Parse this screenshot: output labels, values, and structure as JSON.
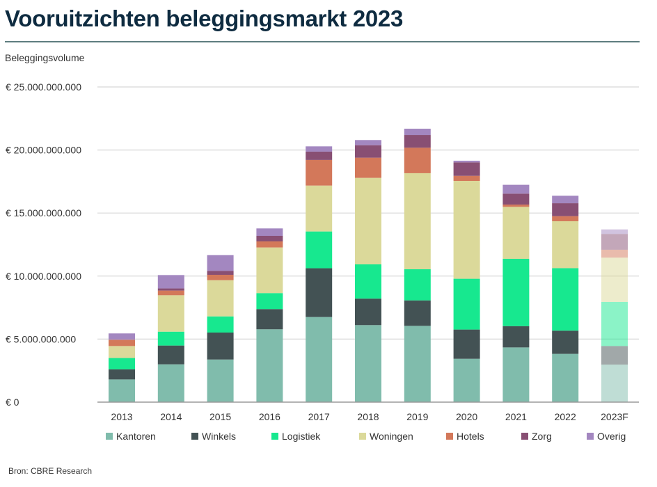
{
  "title": "Vooruitzichten beleggingsmarkt 2023",
  "source": "Bron: CBRE Research",
  "chart_data": {
    "type": "bar",
    "stacked": true,
    "title": "Vooruitzichten beleggingsmarkt 2023",
    "ylabel": "Beleggingsvolume",
    "xlabel": "",
    "ylim": [
      0,
      25000000000
    ],
    "yticks": [
      0,
      5000000000,
      10000000000,
      15000000000,
      20000000000,
      25000000000
    ],
    "ytick_labels": [
      "€ 0",
      "€ 5.000.000.000",
      "€ 10.000.000.000",
      "€ 15.000.000.000",
      "€ 20.000.000.000",
      "€ 25.000.000.000"
    ],
    "grid": true,
    "legend_placement": "bottom",
    "categories": [
      "2013",
      "2014",
      "2015",
      "2016",
      "2017",
      "2018",
      "2019",
      "2020",
      "2021",
      "2022",
      "2023F"
    ],
    "forecast_category": "2023F",
    "series": [
      {
        "name": "Kantoren",
        "color": "#80bcac",
        "values": [
          1800000000.0,
          3000000000.0,
          3380000000.0,
          5780000000.0,
          6750000000.0,
          6110000000.0,
          6050000000.0,
          3440000000.0,
          4340000000.0,
          3830000000.0,
          2980000000.0
        ]
      },
      {
        "name": "Winkels",
        "color": "#435254",
        "values": [
          800000000.0,
          1490000000.0,
          2140000000.0,
          1600000000.0,
          3870000000.0,
          2100000000.0,
          2020000000.0,
          2320000000.0,
          1690000000.0,
          1840000000.0,
          1470000000.0
        ]
      },
      {
        "name": "Logistiek",
        "color": "#17e88f",
        "values": [
          900000000.0,
          1100000000.0,
          1280000000.0,
          1270000000.0,
          2920000000.0,
          2720000000.0,
          2470000000.0,
          4030000000.0,
          5340000000.0,
          4960000000.0,
          3500000000.0
        ]
      },
      {
        "name": "Woningen",
        "color": "#dbd99a",
        "values": [
          950000000.0,
          2890000000.0,
          2870000000.0,
          3620000000.0,
          3640000000.0,
          6860000000.0,
          7620000000.0,
          7760000000.0,
          4120000000.0,
          3720000000.0,
          3510000000.0
        ]
      },
      {
        "name": "Hotels",
        "color": "#d3785a",
        "values": [
          500000000.0,
          370000000.0,
          430000000.0,
          480000000.0,
          2030000000.0,
          1600000000.0,
          2020000000.0,
          400000000.0,
          180000000.0,
          400000000.0,
          630000000.0
        ]
      },
      {
        "name": "Zorg",
        "color": "#884f73",
        "values": [
          0.0,
          170000000.0,
          310000000.0,
          440000000.0,
          660000000.0,
          990000000.0,
          1010000000.0,
          1070000000.0,
          870000000.0,
          1030000000.0,
          1250000000.0
        ]
      },
      {
        "name": "Overig",
        "color": "#a387c0",
        "values": [
          500000000.0,
          1060000000.0,
          1250000000.0,
          590000000.0,
          420000000.0,
          410000000.0,
          500000000.0,
          130000000.0,
          700000000.0,
          590000000.0,
          360000000.0
        ]
      }
    ]
  }
}
